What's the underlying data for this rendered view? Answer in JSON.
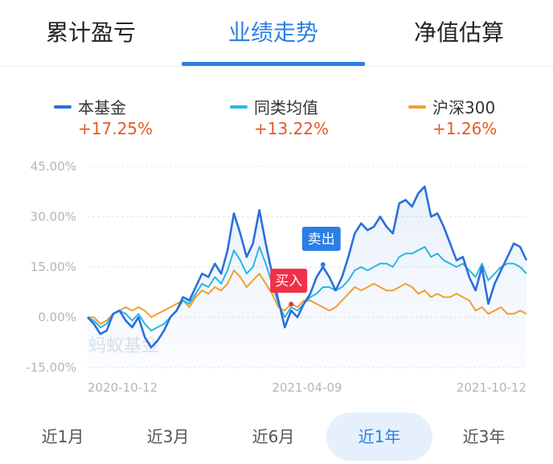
{
  "tabs": [
    {
      "label": "累计盈亏",
      "active": false
    },
    {
      "label": "业绩走势",
      "active": true
    },
    {
      "label": "净值估算",
      "active": false
    }
  ],
  "legend": [
    {
      "name": "本基金",
      "value": "+17.25%",
      "color": "#2a6fdb"
    },
    {
      "name": "同类均值",
      "value": "+13.22%",
      "color": "#29b6e6"
    },
    {
      "name": "沪深300",
      "value": "+1.26%",
      "color": "#f0a030"
    }
  ],
  "watermark": "蚂蚁基金",
  "markers": {
    "buy_label": "买入",
    "sell_label": "卖出",
    "buy_color": "#f0314a",
    "sell_color": "#2a7fe6"
  },
  "periods": [
    {
      "label": "近1月",
      "active": false
    },
    {
      "label": "近3月",
      "active": false
    },
    {
      "label": "近6月",
      "active": false
    },
    {
      "label": "近1年",
      "active": true
    },
    {
      "label": "近3年",
      "active": false
    }
  ],
  "chart_data": {
    "type": "line",
    "ylim": [
      -15,
      45
    ],
    "y_ticks": [
      45,
      30,
      15,
      0,
      -15
    ],
    "y_tick_labels": [
      "45.00%",
      "30.00%",
      "15.00%",
      "0.00%",
      "-15.00%"
    ],
    "x_tick_labels": [
      "2020-10-12",
      "2021-04-09",
      "2021-10-12"
    ],
    "grid": true,
    "series": [
      {
        "name": "本基金",
        "color": "#2a6fdb",
        "values": [
          0,
          -2,
          -5,
          -4,
          1,
          2,
          -1,
          -3,
          0,
          -6,
          -9,
          -7,
          -4,
          0,
          2,
          6,
          5,
          9,
          13,
          12,
          16,
          13,
          20,
          31,
          25,
          18,
          22,
          32,
          22,
          13,
          5,
          -3,
          2,
          0,
          4,
          7,
          12,
          15,
          12,
          8,
          12,
          18,
          25,
          28,
          26,
          27,
          30,
          27,
          25,
          34,
          35,
          33,
          37,
          39,
          30,
          31,
          27,
          22,
          17,
          18,
          12,
          8,
          15,
          4,
          10,
          14,
          18,
          22,
          21,
          17
        ]
      },
      {
        "name": "同类均值",
        "color": "#29b6e6",
        "values": [
          0,
          -1,
          -3,
          -2,
          1,
          2,
          1,
          -1,
          1,
          -2,
          -4,
          -3,
          -2,
          0,
          2,
          5,
          4,
          7,
          10,
          9,
          12,
          10,
          14,
          20,
          17,
          13,
          15,
          21,
          16,
          10,
          4,
          0,
          3,
          2,
          4,
          6,
          7,
          9,
          9,
          8,
          9,
          11,
          14,
          15,
          14,
          15,
          16,
          16,
          15,
          18,
          19,
          19,
          20,
          21,
          18,
          19,
          17,
          16,
          15,
          16,
          14,
          12,
          16,
          11,
          13,
          15,
          16,
          16,
          15,
          13
        ]
      },
      {
        "name": "沪深300",
        "color": "#f0a030",
        "values": [
          0,
          0,
          -2,
          -1,
          1,
          2,
          3,
          2,
          3,
          2,
          0,
          1,
          2,
          3,
          4,
          5,
          3,
          6,
          8,
          7,
          9,
          8,
          10,
          14,
          12,
          9,
          11,
          13,
          10,
          7,
          3,
          2,
          4,
          3,
          5,
          5,
          4,
          3,
          2,
          3,
          5,
          7,
          9,
          8,
          9,
          10,
          9,
          8,
          8,
          9,
          10,
          9,
          7,
          8,
          6,
          7,
          6,
          6,
          7,
          6,
          5,
          2,
          3,
          1,
          2,
          3,
          1,
          1,
          2,
          1
        ]
      }
    ],
    "buy_index": 32,
    "sell_index": 37
  }
}
